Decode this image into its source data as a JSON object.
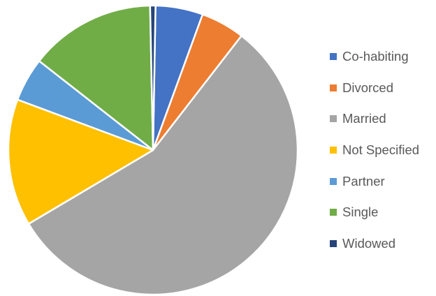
{
  "chart_data": {
    "type": "pie",
    "title": "",
    "legend_position": "right",
    "start_angle_deg": 1,
    "slices": [
      {
        "label": "Co-habiting",
        "value": 5.3,
        "color": "#4472C4"
      },
      {
        "label": "Divorced",
        "value": 4.9,
        "color": "#ED7D31"
      },
      {
        "label": "Married",
        "value": 56.0,
        "color": "#A5A5A5"
      },
      {
        "label": "Not Specified",
        "value": 14.2,
        "color": "#FFC000"
      },
      {
        "label": "Partner",
        "value": 4.9,
        "color": "#5B9BD5"
      },
      {
        "label": "Single",
        "value": 14.1,
        "color": "#70AD47"
      },
      {
        "label": "Widowed",
        "value": 0.6,
        "color": "#264478"
      }
    ]
  }
}
